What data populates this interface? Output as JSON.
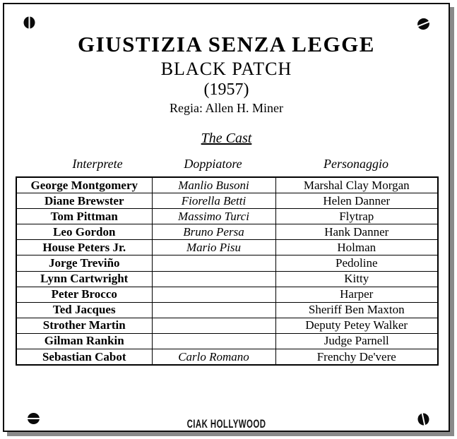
{
  "film": {
    "title": "GIUSTIZIA SENZA LEGGE",
    "original_title": "BLACK PATCH",
    "year": "(1957)",
    "director": "Regia: Allen H. Miner"
  },
  "cast": {
    "heading": "The Cast",
    "columns": [
      "Interprete",
      "Doppiatore",
      "Personaggio"
    ],
    "rows": [
      [
        "George Montgomery",
        "Manlio Busoni",
        "Marshal Clay Morgan"
      ],
      [
        "Diane Brewster",
        "Fiorella Betti",
        "Helen Danner"
      ],
      [
        "Tom Pittman",
        "Massimo Turci",
        "Flytrap"
      ],
      [
        "Leo Gordon",
        "Bruno Persa",
        "Hank Danner"
      ],
      [
        "House Peters Jr.",
        "Mario Pisu",
        "Holman"
      ],
      [
        "Jorge Treviño",
        "",
        "Pedoline"
      ],
      [
        "Lynn Cartwright",
        "",
        "Kitty"
      ],
      [
        "Peter Brocco",
        "",
        "Harper"
      ],
      [
        "Ted Jacques",
        "",
        "Sheriff Ben Maxton"
      ],
      [
        "Strother Martin",
        "",
        "Deputy Petey Walker"
      ],
      [
        "Gilman Rankin",
        "",
        "Judge Parnell"
      ],
      [
        "Sebastian Cabot",
        "Carlo Romano",
        "Frenchy De'vere"
      ]
    ]
  },
  "footer": {
    "logo_text": "CIAK HOLLYWOOD"
  },
  "decor": {
    "screw_icon": "screw",
    "colors": {
      "text": "#000000",
      "background": "#ffffff",
      "border": "#000000",
      "shadow": "#8a8a8a"
    }
  }
}
